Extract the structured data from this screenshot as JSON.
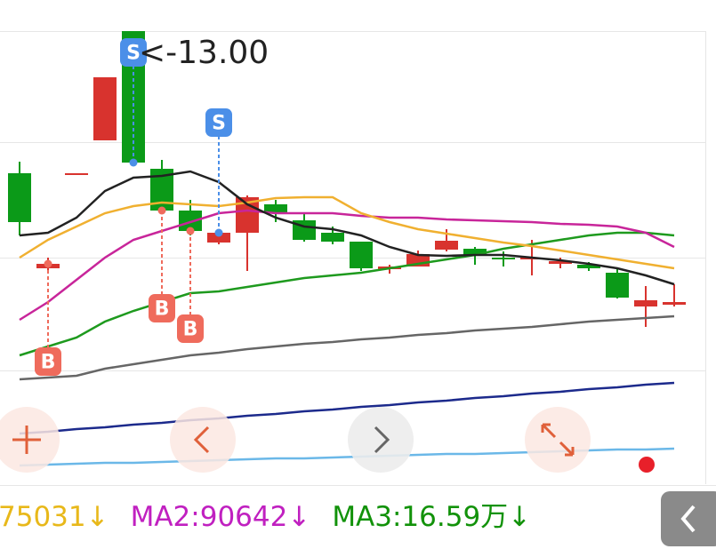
{
  "chart_data": {
    "type": "candlestick",
    "ylim": [
      7.9,
      13.0
    ],
    "up_color": "#d8332e",
    "down_color": "#0b9a18",
    "candles": [
      {
        "open": 11.4,
        "close": 10.85,
        "high": 11.53,
        "low": 10.7
      },
      {
        "open": 10.33,
        "close": 10.38,
        "high": 10.45,
        "low": 10.3
      },
      {
        "open": 11.4,
        "close": 11.4,
        "high": 11.4,
        "low": 11.4
      },
      {
        "open": 11.77,
        "close": 12.48,
        "high": 12.48,
        "low": 11.77
      },
      {
        "open": 13.0,
        "close": 11.52,
        "high": 13.0,
        "low": 11.5
      },
      {
        "open": 11.45,
        "close": 10.98,
        "high": 11.55,
        "low": 10.95
      },
      {
        "open": 10.98,
        "close": 10.75,
        "high": 11.1,
        "low": 10.7
      },
      {
        "open": 10.62,
        "close": 10.73,
        "high": 10.75,
        "low": 10.6
      },
      {
        "open": 10.73,
        "close": 11.13,
        "high": 11.15,
        "low": 10.3
      },
      {
        "open": 11.05,
        "close": 10.95,
        "high": 11.1,
        "low": 10.85
      },
      {
        "open": 10.87,
        "close": 10.65,
        "high": 10.95,
        "low": 10.63
      },
      {
        "open": 10.73,
        "close": 10.63,
        "high": 10.8,
        "low": 10.6
      },
      {
        "open": 10.63,
        "close": 10.33,
        "high": 10.63,
        "low": 10.3
      },
      {
        "open": 10.32,
        "close": 10.35,
        "high": 10.37,
        "low": 10.27
      },
      {
        "open": 10.35,
        "close": 10.49,
        "high": 10.53,
        "low": 10.35
      },
      {
        "open": 10.54,
        "close": 10.64,
        "high": 10.77,
        "low": 10.52
      },
      {
        "open": 10.55,
        "close": 10.47,
        "high": 10.57,
        "low": 10.37
      },
      {
        "open": 10.45,
        "close": 10.43,
        "high": 10.52,
        "low": 10.35
      },
      {
        "open": 10.43,
        "close": 10.45,
        "high": 10.65,
        "low": 10.25
      },
      {
        "open": 10.38,
        "close": 10.41,
        "high": 10.45,
        "low": 10.33
      },
      {
        "open": 10.37,
        "close": 10.33,
        "high": 10.4,
        "low": 10.3
      },
      {
        "open": 10.28,
        "close": 10.0,
        "high": 10.32,
        "low": 9.99
      },
      {
        "open": 9.9,
        "close": 9.97,
        "high": 10.13,
        "low": 9.67
      },
      {
        "open": 9.92,
        "close": 9.95,
        "high": 10.15,
        "low": 9.9
      }
    ],
    "ma_lines": [
      {
        "color": "#6bb8e8",
        "values": [
          8.11,
          8.12,
          8.13,
          8.14,
          8.14,
          8.15,
          8.16,
          8.17,
          8.18,
          8.19,
          8.19,
          8.2,
          8.21,
          8.22,
          8.23,
          8.24,
          8.24,
          8.25,
          8.26,
          8.27,
          8.28,
          8.29,
          8.29,
          8.3
        ]
      },
      {
        "color": "#1c2a8c",
        "values": [
          8.47,
          8.49,
          8.52,
          8.54,
          8.57,
          8.59,
          8.62,
          8.64,
          8.67,
          8.69,
          8.72,
          8.74,
          8.77,
          8.79,
          8.82,
          8.84,
          8.87,
          8.89,
          8.92,
          8.94,
          8.97,
          8.99,
          9.02,
          9.04
        ]
      },
      {
        "color": "#666666",
        "values": [
          9.08,
          9.1,
          9.12,
          9.2,
          9.25,
          9.3,
          9.35,
          9.38,
          9.42,
          9.45,
          9.48,
          9.5,
          9.53,
          9.55,
          9.58,
          9.6,
          9.63,
          9.65,
          9.67,
          9.7,
          9.73,
          9.75,
          9.77,
          9.79
        ]
      },
      {
        "color": "#1e9a1e",
        "values": [
          9.35,
          9.45,
          9.55,
          9.73,
          9.85,
          9.95,
          10.05,
          10.07,
          10.12,
          10.17,
          10.22,
          10.25,
          10.28,
          10.33,
          10.38,
          10.43,
          10.48,
          10.55,
          10.6,
          10.65,
          10.7,
          10.73,
          10.73,
          10.7
        ]
      },
      {
        "color": "#c8259a",
        "values": [
          9.75,
          9.95,
          10.2,
          10.45,
          10.65,
          10.75,
          10.85,
          10.95,
          10.98,
          10.95,
          10.95,
          10.95,
          10.92,
          10.9,
          10.9,
          10.88,
          10.87,
          10.86,
          10.85,
          10.83,
          10.82,
          10.8,
          10.73,
          10.57
        ]
      },
      {
        "color": "#f0b030",
        "values": [
          10.45,
          10.65,
          10.8,
          10.95,
          11.03,
          11.07,
          11.05,
          11.03,
          11.07,
          11.12,
          11.13,
          11.13,
          10.95,
          10.85,
          10.77,
          10.72,
          10.67,
          10.62,
          10.58,
          10.53,
          10.48,
          10.43,
          10.38,
          10.33
        ]
      },
      {
        "color": "#222222",
        "values": [
          10.7,
          10.73,
          10.9,
          11.2,
          11.35,
          11.37,
          11.42,
          11.3,
          11.05,
          10.9,
          10.8,
          10.77,
          10.7,
          10.57,
          10.48,
          10.47,
          10.48,
          10.48,
          10.45,
          10.42,
          10.38,
          10.33,
          10.25,
          10.15
        ]
      }
    ],
    "signals": [
      {
        "label": "B",
        "index": 1,
        "color": "#ef6b5c"
      },
      {
        "label": "S",
        "index": 4,
        "color": "#4b8fe8"
      },
      {
        "label": "B",
        "index": 5,
        "color": "#ef6b5c"
      },
      {
        "label": "B",
        "index": 6,
        "color": "#ef6b5c"
      },
      {
        "label": "S",
        "index": 7,
        "color": "#4b8fe8"
      }
    ],
    "annotation": {
      "text": "<-13.00",
      "index": 4
    },
    "legend": [
      {
        "text": "75031↓",
        "color": "#e8b81a"
      },
      {
        "text": "MA2:90642↓",
        "color": "#c020c0"
      },
      {
        "text": "MA3:16.59万↓",
        "color": "#12920a"
      }
    ]
  }
}
